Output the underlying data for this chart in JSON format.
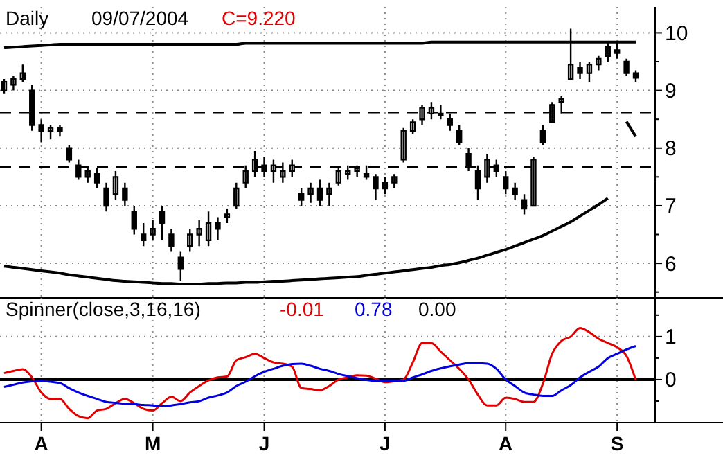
{
  "chart_data": [
    {
      "type": "candlestick",
      "title": "Daily",
      "annotations": [
        "09/07/2004",
        "C=9.220"
      ],
      "categories": [
        null,
        null,
        null,
        null,
        null,
        null,
        null,
        null,
        null,
        null,
        null,
        null,
        null,
        null,
        null,
        null,
        null,
        null,
        null,
        null,
        null,
        null,
        null,
        null,
        null,
        null,
        null,
        null,
        null,
        null,
        null,
        null,
        null,
        null,
        null,
        null,
        null,
        null,
        null,
        null,
        null,
        null,
        null,
        null,
        null,
        null,
        null,
        null,
        null,
        null,
        null,
        null,
        null,
        null,
        null,
        null,
        null,
        null,
        null,
        null,
        null,
        null,
        null,
        null,
        null,
        null,
        null,
        null,
        null
      ],
      "ohlc": [
        [
          9.0,
          9.2,
          8.95,
          9.15
        ],
        [
          9.1,
          9.25,
          9.0,
          9.2
        ],
        [
          9.2,
          9.45,
          9.15,
          9.3
        ],
        [
          9.0,
          9.1,
          8.3,
          8.4
        ],
        [
          8.4,
          8.5,
          8.1,
          8.3
        ],
        [
          8.3,
          8.4,
          8.15,
          8.35
        ],
        [
          8.35,
          8.4,
          8.2,
          8.3
        ],
        [
          8.0,
          8.05,
          7.75,
          7.8
        ],
        [
          7.7,
          7.8,
          7.45,
          7.5
        ],
        [
          7.5,
          7.65,
          7.4,
          7.6
        ],
        [
          7.55,
          7.65,
          7.3,
          7.4
        ],
        [
          7.3,
          7.4,
          6.9,
          7.0
        ],
        [
          7.2,
          7.6,
          7.1,
          7.5
        ],
        [
          7.3,
          7.4,
          7.0,
          7.1
        ],
        [
          6.9,
          7.0,
          6.5,
          6.6
        ],
        [
          6.5,
          6.7,
          6.3,
          6.4
        ],
        [
          6.5,
          6.75,
          6.4,
          6.6
        ],
        [
          6.9,
          7.0,
          6.4,
          6.7
        ],
        [
          6.5,
          6.6,
          6.2,
          6.3
        ],
        [
          6.1,
          6.2,
          5.7,
          5.9
        ],
        [
          6.3,
          6.6,
          6.2,
          6.5
        ],
        [
          6.5,
          6.75,
          6.3,
          6.6
        ],
        [
          6.4,
          6.9,
          6.3,
          6.7
        ],
        [
          6.7,
          6.8,
          6.4,
          6.6
        ],
        [
          6.8,
          6.95,
          6.7,
          6.85
        ],
        [
          7.0,
          7.4,
          6.95,
          7.3
        ],
        [
          7.4,
          7.7,
          7.3,
          7.6
        ],
        [
          7.6,
          7.95,
          7.5,
          7.8
        ],
        [
          7.7,
          7.85,
          7.5,
          7.6
        ],
        [
          7.6,
          7.8,
          7.4,
          7.7
        ],
        [
          7.5,
          7.75,
          7.4,
          7.6
        ],
        [
          7.6,
          7.8,
          7.5,
          7.7
        ],
        [
          7.2,
          7.3,
          7.0,
          7.1
        ],
        [
          7.2,
          7.4,
          7.05,
          7.3
        ],
        [
          7.3,
          7.45,
          7.0,
          7.1
        ],
        [
          7.2,
          7.4,
          7.0,
          7.3
        ],
        [
          7.4,
          7.65,
          7.35,
          7.6
        ],
        [
          7.55,
          7.7,
          7.45,
          7.6
        ],
        [
          7.6,
          7.7,
          7.5,
          7.65
        ],
        [
          7.55,
          7.7,
          7.45,
          7.5
        ],
        [
          7.5,
          7.55,
          7.1,
          7.3
        ],
        [
          7.3,
          7.5,
          7.2,
          7.4
        ],
        [
          7.4,
          7.55,
          7.3,
          7.5
        ],
        [
          7.8,
          8.35,
          7.75,
          8.3
        ],
        [
          8.3,
          8.5,
          8.25,
          8.45
        ],
        [
          8.5,
          8.75,
          8.4,
          8.7
        ],
        [
          8.6,
          8.8,
          8.5,
          8.7
        ],
        [
          8.6,
          8.75,
          8.5,
          8.6
        ],
        [
          8.5,
          8.6,
          8.3,
          8.4
        ],
        [
          8.3,
          8.4,
          8.05,
          8.1
        ],
        [
          7.9,
          8.0,
          7.6,
          7.7
        ],
        [
          7.6,
          7.7,
          7.1,
          7.3
        ],
        [
          7.5,
          7.9,
          7.4,
          7.8
        ],
        [
          7.7,
          7.8,
          7.5,
          7.6
        ],
        [
          7.5,
          7.6,
          7.2,
          7.3
        ],
        [
          7.3,
          7.4,
          7.1,
          7.2
        ],
        [
          7.1,
          7.2,
          6.85,
          6.95
        ],
        [
          7.0,
          7.85,
          7.0,
          7.8
        ],
        [
          8.1,
          8.4,
          8.05,
          8.3
        ],
        [
          8.45,
          8.8,
          8.45,
          8.75
        ],
        [
          8.8,
          8.9,
          8.6,
          8.85
        ],
        [
          9.2,
          10.07,
          9.2,
          9.45
        ],
        [
          9.4,
          9.5,
          9.2,
          9.3
        ],
        [
          9.3,
          9.5,
          9.15,
          9.45
        ],
        [
          9.45,
          9.6,
          9.35,
          9.55
        ],
        [
          9.6,
          9.85,
          9.5,
          9.75
        ],
        [
          9.7,
          9.85,
          9.55,
          9.65
        ],
        [
          9.5,
          9.55,
          9.25,
          9.3
        ],
        [
          9.3,
          9.35,
          9.15,
          9.22
        ]
      ],
      "color": "#000000",
      "series": [
        {
          "type": "line",
          "color": "#000000",
          "values": [
            9.74,
            9.75,
            9.76,
            9.77,
            9.78,
            9.79,
            9.8,
            9.8,
            9.8,
            9.8,
            9.8,
            9.8,
            9.8,
            9.8,
            9.8,
            9.8,
            9.8,
            9.8,
            9.8,
            9.8,
            9.8,
            9.8,
            9.8,
            9.8,
            9.8,
            9.8,
            9.82,
            9.82,
            9.82,
            9.82,
            9.82,
            9.82,
            9.82,
            9.82,
            9.82,
            9.82,
            9.82,
            9.82,
            9.82,
            9.82,
            9.82,
            9.82,
            9.82,
            9.82,
            9.82,
            9.82,
            9.84,
            9.84,
            9.84,
            9.84,
            9.84,
            9.84,
            9.84,
            9.84,
            9.84,
            9.84,
            9.84,
            9.84,
            9.84,
            9.84,
            9.84,
            9.84,
            9.84,
            9.84,
            9.84,
            9.84,
            9.84,
            9.84,
            9.84
          ]
        },
        {
          "type": "line",
          "color": "#000000",
          "values": [
            5.95,
            5.93,
            5.91,
            5.89,
            5.87,
            5.85,
            5.83,
            5.8,
            5.78,
            5.76,
            5.74,
            5.72,
            5.7,
            5.69,
            5.68,
            5.67,
            5.66,
            5.65,
            5.65,
            5.64,
            5.64,
            5.64,
            5.65,
            5.65,
            5.66,
            5.66,
            5.67,
            5.67,
            5.68,
            5.69,
            5.69,
            5.7,
            5.71,
            5.72,
            5.73,
            5.74,
            5.75,
            5.76,
            5.77,
            5.79,
            5.81,
            5.83,
            5.85,
            5.87,
            5.89,
            5.91,
            5.93,
            5.96,
            5.98,
            6.01,
            6.05,
            6.09,
            6.14,
            6.19,
            6.24,
            6.3,
            6.36,
            6.42,
            6.48,
            6.56,
            6.64,
            6.72,
            6.82,
            6.92,
            7.02,
            7.13,
            null,
            null,
            null
          ]
        },
        {
          "type": "line",
          "color": "#000000",
          "values": [
            null,
            null,
            null,
            null,
            null,
            null,
            null,
            null,
            null,
            null,
            null,
            null,
            null,
            null,
            null,
            null,
            null,
            null,
            null,
            null,
            null,
            null,
            null,
            null,
            null,
            null,
            null,
            null,
            null,
            null,
            null,
            null,
            null,
            null,
            null,
            null,
            null,
            null,
            null,
            null,
            null,
            null,
            null,
            null,
            null,
            null,
            null,
            null,
            null,
            null,
            null,
            null,
            null,
            null,
            null,
            null,
            null,
            null,
            null,
            null,
            null,
            null,
            null,
            null,
            null,
            null,
            null,
            8.46,
            8.2
          ]
        }
      ],
      "ref_lines": [
        {
          "axis": "y",
          "value": 8.62,
          "line_style": "dashed",
          "color": "#000000"
        },
        {
          "axis": "y",
          "value": 7.67,
          "line_style": "dashed",
          "color": "#000000"
        }
      ],
      "ylim": [
        5.4,
        10.45
      ],
      "yticks": [
        {
          "value": 5.5,
          "label": null
        },
        6,
        {
          "value": 6.5,
          "label": null
        },
        7,
        {
          "value": 7.5,
          "label": null
        },
        8,
        {
          "value": 8.5,
          "label": null
        },
        9,
        {
          "value": 9.5,
          "label": null
        },
        10
      ],
      "tick_labels": "y",
      "grid": true
    },
    {
      "type": "line",
      "title": "Spinner(close,3,16,16)",
      "annotations": [
        "-0.01",
        "0.78",
        "0.00"
      ],
      "categories": [
        null,
        null,
        null,
        null,
        "A",
        null,
        null,
        null,
        null,
        null,
        null,
        null,
        null,
        null,
        null,
        null,
        "M",
        null,
        null,
        null,
        null,
        null,
        null,
        null,
        null,
        null,
        null,
        null,
        "J",
        null,
        null,
        null,
        null,
        null,
        null,
        null,
        null,
        null,
        null,
        null,
        null,
        "J",
        null,
        null,
        null,
        null,
        null,
        null,
        null,
        null,
        null,
        null,
        null,
        null,
        "A",
        null,
        null,
        null,
        null,
        null,
        null,
        null,
        null,
        null,
        null,
        null,
        "S",
        null,
        null
      ],
      "series": [
        {
          "color": "#e00000",
          "values": [
            0.15,
            0.2,
            0.24,
            0.05,
            -0.3,
            -0.45,
            -0.45,
            -0.68,
            -0.85,
            -0.9,
            -0.72,
            -0.68,
            -0.55,
            -0.45,
            -0.55,
            -0.68,
            -0.72,
            -0.55,
            -0.4,
            -0.5,
            -0.3,
            -0.15,
            -0.02,
            0.05,
            0.07,
            0.45,
            0.52,
            0.6,
            0.5,
            0.4,
            0.37,
            0.3,
            -0.2,
            -0.22,
            -0.25,
            -0.15,
            0.0,
            0.05,
            0.1,
            0.09,
            0.02,
            -0.06,
            -0.04,
            0.0,
            0.4,
            0.85,
            0.85,
            0.65,
            0.45,
            0.25,
            0.0,
            -0.35,
            -0.6,
            -0.6,
            -0.42,
            -0.45,
            -0.52,
            -0.52,
            -0.1,
            0.6,
            0.9,
            1.0,
            1.2,
            1.1,
            0.95,
            0.85,
            0.75,
            0.55,
            -0.01
          ]
        },
        {
          "color": "#0000e0",
          "values": [
            -0.17,
            -0.12,
            -0.07,
            -0.04,
            -0.03,
            -0.05,
            -0.08,
            -0.2,
            -0.3,
            -0.38,
            -0.45,
            -0.52,
            -0.54,
            -0.56,
            -0.57,
            -0.59,
            -0.6,
            -0.62,
            -0.6,
            -0.57,
            -0.53,
            -0.5,
            -0.42,
            -0.37,
            -0.3,
            -0.15,
            -0.05,
            0.08,
            0.18,
            0.25,
            0.32,
            0.36,
            0.37,
            0.32,
            0.25,
            0.2,
            0.13,
            0.08,
            0.03,
            -0.01,
            -0.03,
            -0.03,
            -0.03,
            -0.03,
            0.05,
            0.12,
            0.2,
            0.26,
            0.31,
            0.35,
            0.38,
            0.38,
            0.37,
            0.25,
            0.0,
            -0.15,
            -0.3,
            -0.35,
            -0.38,
            -0.38,
            -0.25,
            -0.13,
            0.05,
            0.18,
            0.3,
            0.5,
            0.6,
            0.7,
            0.78
          ]
        }
      ],
      "ref_lines": [
        {
          "axis": "y",
          "value": 0,
          "color": "#000000"
        }
      ],
      "ylim": [
        -1.0,
        1.9
      ],
      "yticks": [
        {
          "value": -0.5,
          "label": null
        },
        0,
        {
          "value": 0.5,
          "label": null
        },
        1,
        {
          "value": 1.5,
          "label": null
        }
      ],
      "grid": true
    }
  ]
}
